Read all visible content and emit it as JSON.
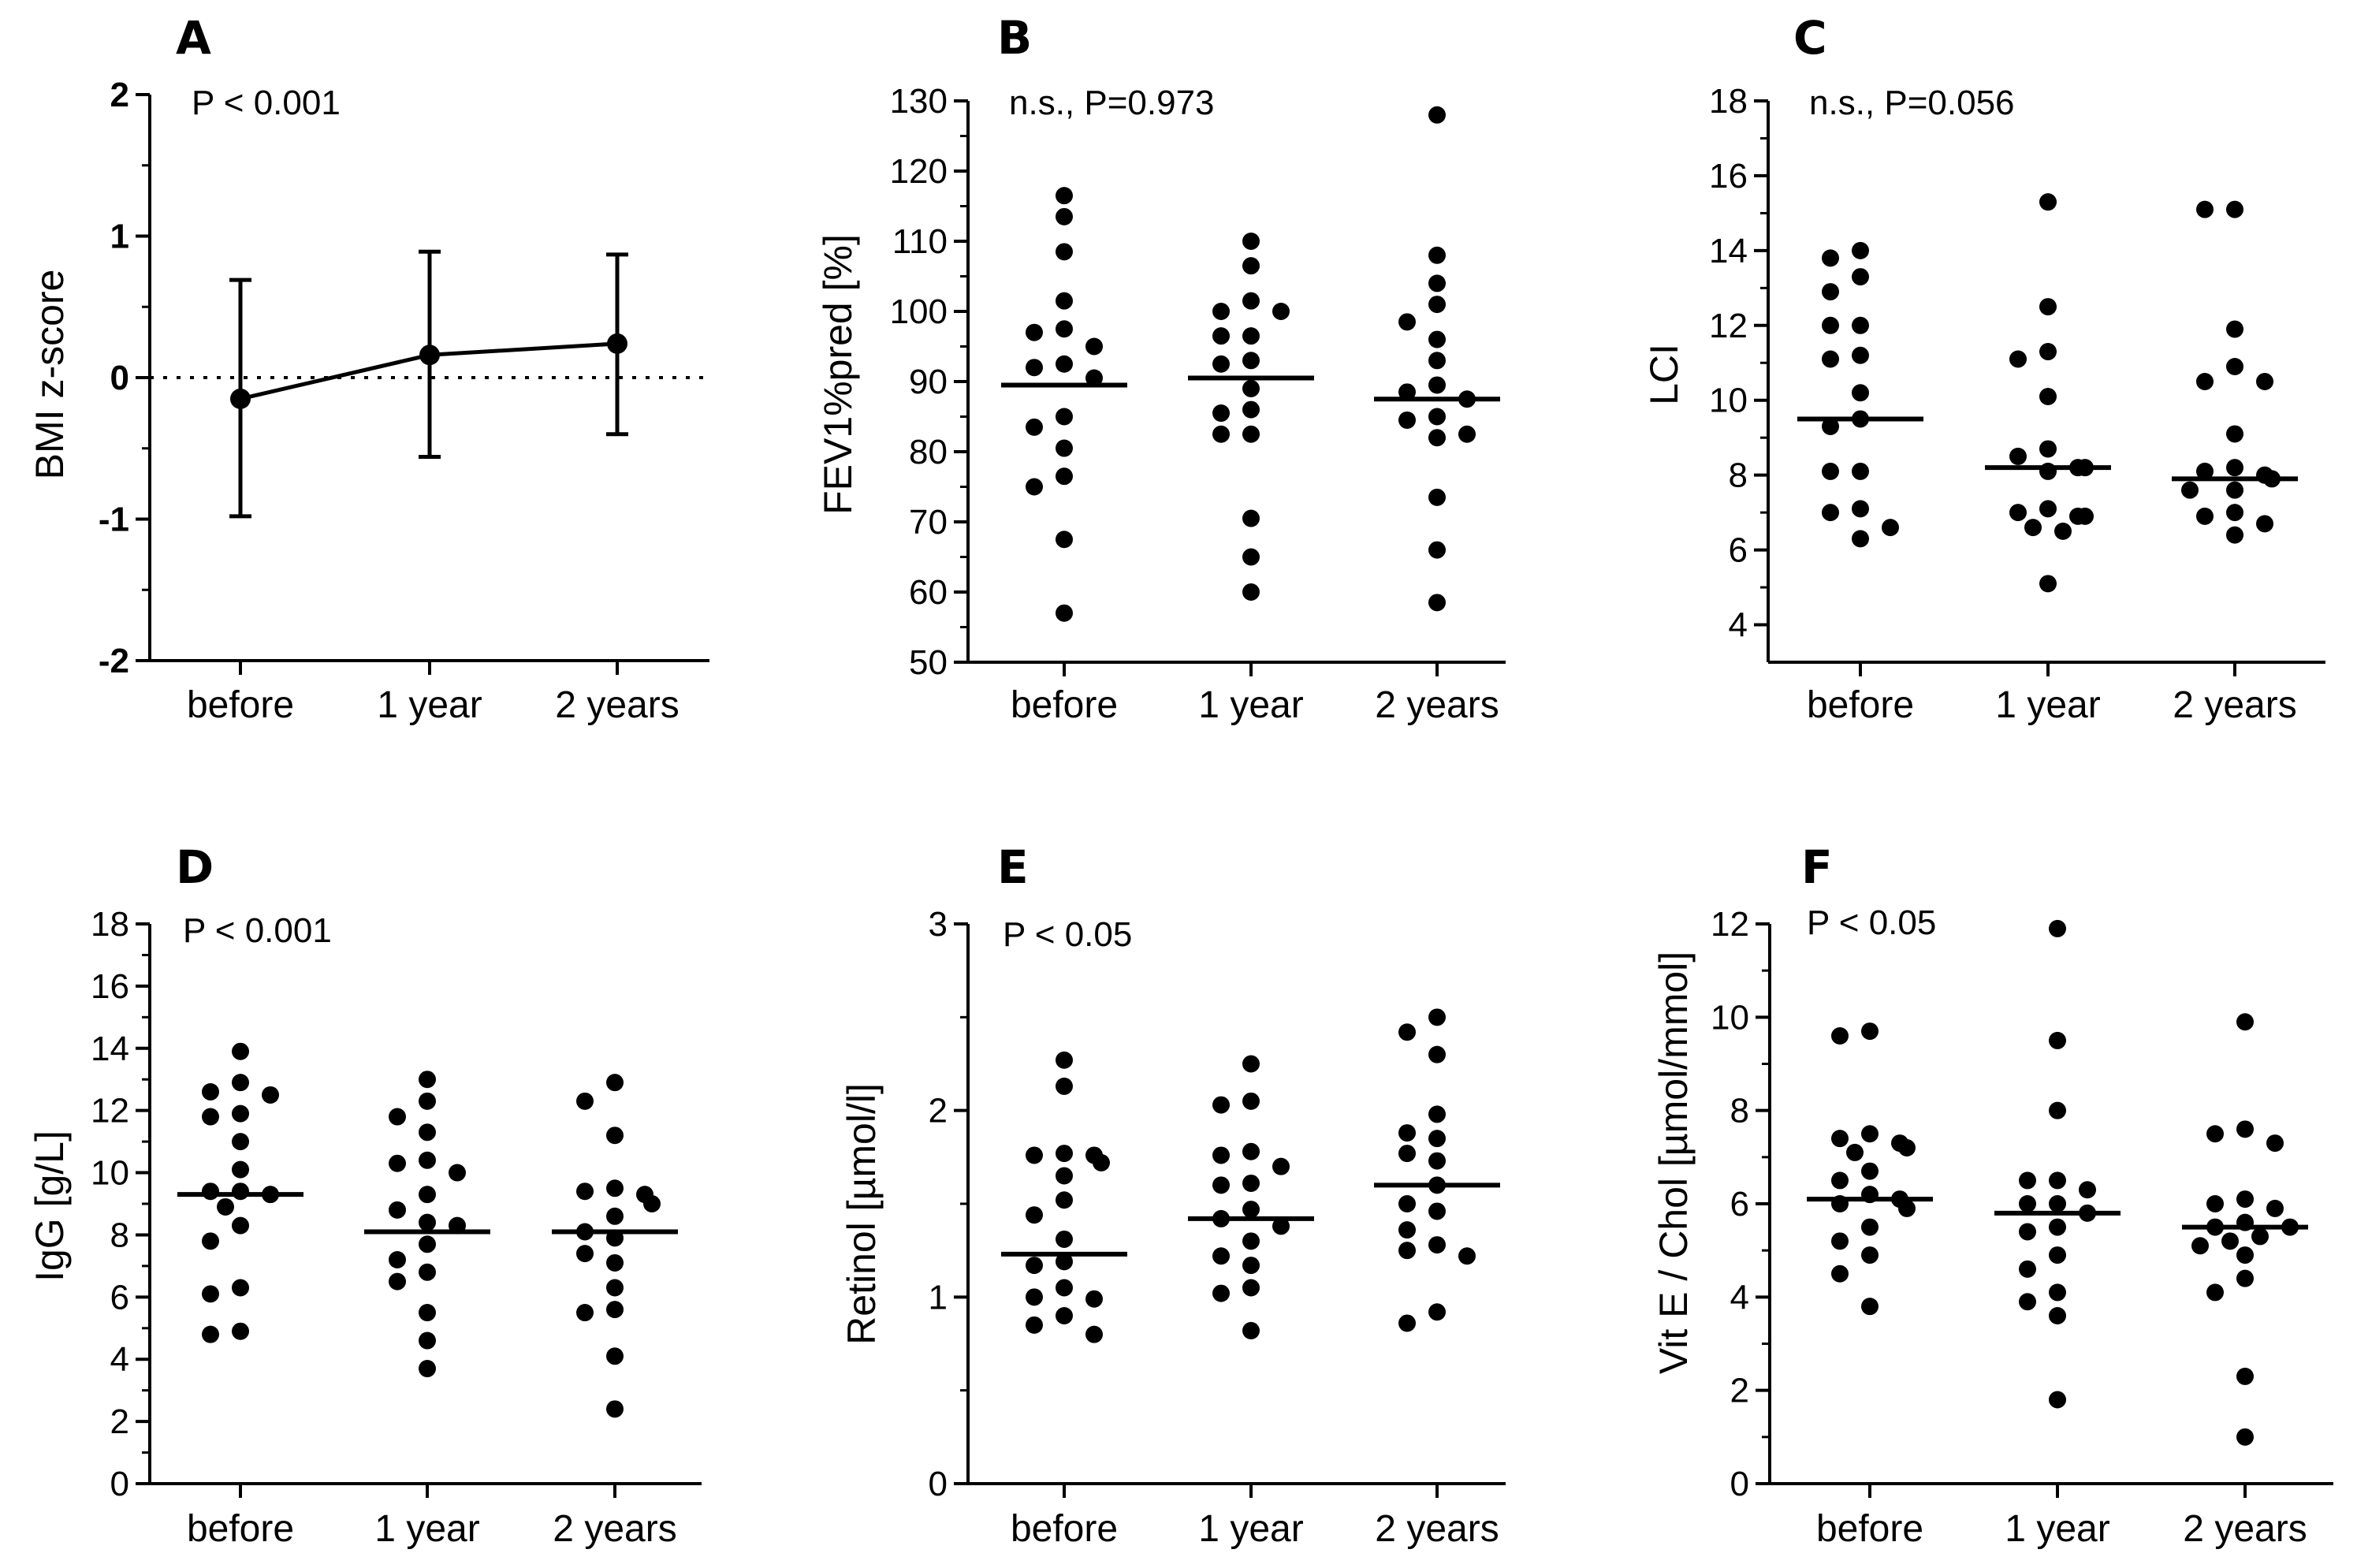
{
  "chart_data": [
    {
      "panel": "A",
      "type": "line",
      "categories": [
        "before",
        "1 year",
        "2 years"
      ],
      "ylabel": "BMI z-score",
      "ylim": [
        -2,
        2
      ],
      "yticks": [
        -2,
        -1,
        0,
        1,
        2
      ],
      "ytick_labels": [
        "-2",
        "-1",
        "0",
        "1",
        "2"
      ],
      "annotation": "P < 0.001",
      "reference_line": 0,
      "means": [
        -0.15,
        0.16,
        0.24
      ],
      "err_low": [
        -0.98,
        -0.56,
        -0.4
      ],
      "err_high": [
        0.69,
        0.89,
        0.87
      ]
    },
    {
      "panel": "B",
      "type": "scatter",
      "categories": [
        "before",
        "1 year",
        "2 years"
      ],
      "ylabel": "FEV1%pred [%]",
      "ylim": [
        50,
        130
      ],
      "yticks": [
        50,
        60,
        70,
        80,
        90,
        100,
        110,
        120,
        130
      ],
      "ytick_labels": [
        "50",
        "60",
        "70",
        "80",
        "90",
        "100",
        "110",
        "120",
        "130"
      ],
      "annotation": "n.s., P=0.973",
      "medians": [
        89.5,
        90.5,
        87.5
      ],
      "series": [
        {
          "name": "before",
          "values": [
            116.5,
            113.5,
            108.5,
            101.5,
            97.5,
            97,
            95,
            92.5,
            92,
            90.5,
            85,
            83.5,
            80.5,
            76.5,
            75,
            67.5,
            57
          ]
        },
        {
          "name": "1 year",
          "values": [
            110,
            106.5,
            101.5,
            100,
            100,
            96.5,
            96.5,
            93,
            92.5,
            89,
            86,
            85.5,
            82.5,
            82.5,
            70.5,
            65,
            60
          ]
        },
        {
          "name": "2 years",
          "values": [
            128,
            108,
            104,
            101,
            98.5,
            96,
            93,
            89.5,
            88.5,
            87.5,
            85,
            84.5,
            82.5,
            82,
            73.5,
            66,
            58.5
          ]
        }
      ]
    },
    {
      "panel": "C",
      "type": "scatter",
      "categories": [
        "before",
        "1 year",
        "2 years"
      ],
      "ylabel": "LCI",
      "ylim": [
        3,
        18
      ],
      "yticks": [
        4,
        6,
        8,
        10,
        12,
        14,
        16,
        18
      ],
      "ytick_labels": [
        "4",
        "6",
        "8",
        "10",
        "12",
        "14",
        "16",
        "18"
      ],
      "annotation": "n.s., P=0.056",
      "medians": [
        9.5,
        8.2,
        7.9
      ],
      "series": [
        {
          "name": "before",
          "values": [
            14,
            13.8,
            13.3,
            12.9,
            12,
            12,
            11.2,
            11.1,
            10.2,
            9.5,
            9.3,
            8.1,
            8.1,
            7.1,
            7,
            6.6,
            6.3
          ]
        },
        {
          "name": "1 year",
          "values": [
            15.3,
            12.5,
            11.3,
            11.1,
            10.1,
            8.7,
            8.5,
            8.2,
            8.2,
            8.1,
            7.1,
            7,
            6.9,
            6.9,
            6.6,
            6.5,
            5.1
          ]
        },
        {
          "name": "2 years",
          "values": [
            15.1,
            15.1,
            11.9,
            10.9,
            10.5,
            10.5,
            9.1,
            8.2,
            8.1,
            8,
            7.9,
            7.6,
            7.6,
            7,
            6.9,
            6.7,
            6.4
          ]
        }
      ]
    },
    {
      "panel": "D",
      "type": "scatter",
      "categories": [
        "before",
        "1 year",
        "2 years"
      ],
      "ylabel": "IgG [g/L]",
      "ylim": [
        0,
        18
      ],
      "yticks": [
        0,
        2,
        4,
        6,
        8,
        10,
        12,
        14,
        16,
        18
      ],
      "ytick_labels": [
        "0",
        "2",
        "4",
        "6",
        "8",
        "10",
        "12",
        "14",
        "16",
        "18"
      ],
      "annotation": "P < 0.001",
      "medians": [
        9.3,
        8.1,
        8.1
      ],
      "series": [
        {
          "name": "before",
          "values": [
            13.9,
            12.9,
            12.6,
            12.5,
            11.9,
            11.8,
            11,
            10.1,
            9.4,
            9.4,
            9.3,
            8.9,
            8.3,
            7.8,
            6.3,
            6.1,
            4.9,
            4.8
          ]
        },
        {
          "name": "1 year",
          "values": [
            13,
            12.3,
            11.8,
            11.3,
            10.4,
            10.3,
            10,
            9.3,
            8.8,
            8.4,
            8.3,
            7.7,
            7.2,
            6.8,
            6.5,
            5.5,
            4.6,
            3.7
          ]
        },
        {
          "name": "2 years",
          "values": [
            12.9,
            12.3,
            11.2,
            9.5,
            9.4,
            9.3,
            9,
            8.6,
            8.1,
            7.9,
            7.4,
            7.1,
            6.3,
            5.6,
            5.5,
            4.1,
            2.4
          ]
        }
      ]
    },
    {
      "panel": "E",
      "type": "scatter",
      "categories": [
        "before",
        "1 year",
        "2 years"
      ],
      "ylabel": "Retinol [µmol/l]",
      "ylim": [
        0,
        3
      ],
      "yticks": [
        0,
        1,
        2,
        3
      ],
      "ytick_labels": [
        "0",
        "1",
        "2",
        "3"
      ],
      "annotation": "P < 0.05",
      "medians": [
        1.23,
        1.42,
        1.6
      ],
      "series": [
        {
          "name": "before",
          "values": [
            2.27,
            2.13,
            1.77,
            1.76,
            1.76,
            1.72,
            1.65,
            1.52,
            1.44,
            1.31,
            1.19,
            1.17,
            1.05,
            1,
            0.99,
            0.9,
            0.85,
            0.8
          ]
        },
        {
          "name": "1 year",
          "values": [
            2.25,
            2.05,
            2.03,
            1.78,
            1.76,
            1.7,
            1.61,
            1.6,
            1.47,
            1.42,
            1.38,
            1.3,
            1.22,
            1.17,
            1.05,
            1.02,
            0.82
          ]
        },
        {
          "name": "2 years",
          "values": [
            2.5,
            2.42,
            2.3,
            1.98,
            1.88,
            1.85,
            1.77,
            1.73,
            1.6,
            1.5,
            1.46,
            1.36,
            1.28,
            1.25,
            1.22,
            0.92,
            0.86
          ]
        }
      ]
    },
    {
      "panel": "F",
      "type": "scatter",
      "categories": [
        "before",
        "1 year",
        "2 years"
      ],
      "ylabel": "Vit E / Chol [µmol/mmol]",
      "ylim": [
        0,
        12
      ],
      "yticks": [
        0,
        2,
        4,
        6,
        8,
        10,
        12
      ],
      "ytick_labels": [
        "0",
        "2",
        "4",
        "6",
        "8",
        "10",
        "12"
      ],
      "annotation": "P < 0.05",
      "medians": [
        6.1,
        5.8,
        5.5
      ],
      "series": [
        {
          "name": "before",
          "values": [
            9.7,
            9.6,
            7.5,
            7.4,
            7.3,
            7.2,
            7.1,
            6.7,
            6.5,
            6.2,
            6.1,
            6,
            5.9,
            5.5,
            5.2,
            4.9,
            4.5,
            3.8
          ]
        },
        {
          "name": "1 year",
          "values": [
            11.9,
            9.5,
            8,
            6.5,
            6.5,
            6.3,
            6,
            6,
            5.8,
            5.5,
            5.4,
            4.9,
            4.6,
            4.1,
            3.9,
            3.6,
            1.8
          ]
        },
        {
          "name": "2 years",
          "values": [
            9.9,
            7.6,
            7.5,
            7.3,
            6.1,
            6,
            5.9,
            5.6,
            5.5,
            5.5,
            5.3,
            5.2,
            5.1,
            4.9,
            4.4,
            4.1,
            2.3,
            1
          ]
        }
      ]
    }
  ]
}
